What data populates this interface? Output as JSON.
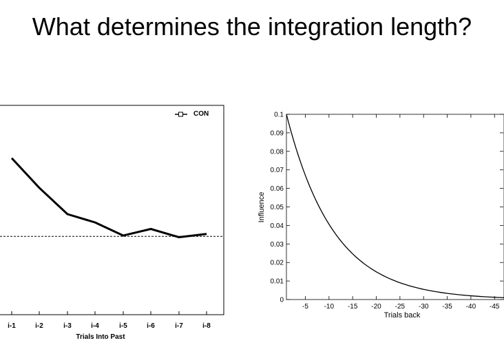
{
  "slide": {
    "title": "What determines the integration length?"
  },
  "chart_data": [
    {
      "type": "line",
      "title": "",
      "xlabel": "Trials Into Past",
      "ylabel": "",
      "categories": [
        "i-1",
        "i-2",
        "i-3",
        "i-4",
        "i-5",
        "i-6",
        "i-7",
        "i-8"
      ],
      "series": [
        {
          "name": "CON",
          "values": [
            0.6,
            0.42,
            0.26,
            0.21,
            0.13,
            0.17,
            0.12,
            0.14
          ]
        }
      ],
      "ylim": [
        -0.35,
        0.92
      ],
      "reference_line": {
        "value": 0.125,
        "style": "dashed"
      },
      "legend": {
        "position": "top-right",
        "entries": [
          "CON"
        ]
      }
    },
    {
      "type": "line",
      "title": "",
      "xlabel": "Trials back",
      "ylabel": "Influence",
      "x_ticks": [
        -5,
        -10,
        -15,
        -20,
        -25,
        -30,
        -35,
        -40,
        -45
      ],
      "y_ticks": [
        0,
        0.01,
        0.02,
        0.03,
        0.04,
        0.05,
        0.06,
        0.07,
        0.08,
        0.09,
        0.1
      ],
      "y_tick_labels": [
        "0",
        "0.01",
        "0.02",
        "0.03",
        "0.04",
        "0.05",
        "0.06",
        "0.07",
        "0.08",
        "0.09",
        "0.1"
      ],
      "xlim": [
        -1,
        -47
      ],
      "ylim": [
        0,
        0.1
      ],
      "series": [
        {
          "name": "influence",
          "function": "exponential decay",
          "start": [
            -1,
            0.1
          ],
          "decay_rate": 0.1
        }
      ]
    }
  ]
}
